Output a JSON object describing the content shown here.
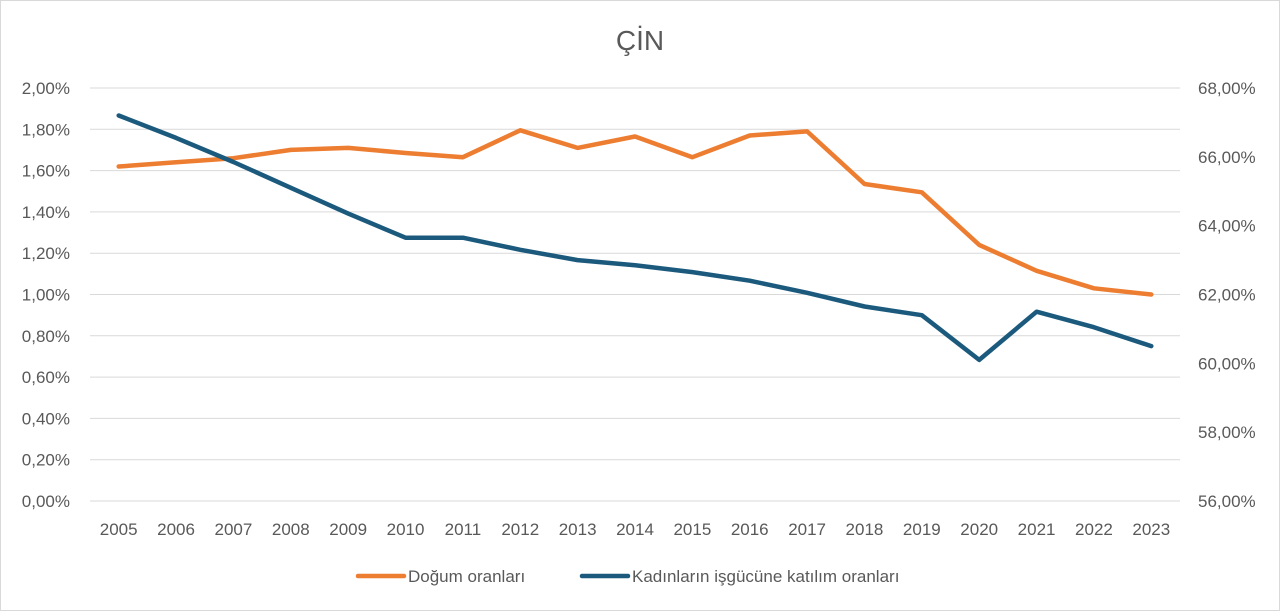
{
  "chart_data": {
    "type": "line",
    "title": "ÇİN",
    "categories": [
      "2005",
      "2006",
      "2007",
      "2008",
      "2009",
      "2010",
      "2011",
      "2012",
      "2013",
      "2014",
      "2015",
      "2016",
      "2017",
      "2018",
      "2019",
      "2020",
      "2021",
      "2022",
      "2023"
    ],
    "y_left": {
      "ylim": [
        0,
        2.0
      ],
      "tick_values": [
        0,
        0.2,
        0.4,
        0.6,
        0.8,
        1.0,
        1.2,
        1.4,
        1.6,
        1.8,
        2.0
      ],
      "tick_labels": [
        "0,00%",
        "0,20%",
        "0,40%",
        "0,60%",
        "0,80%",
        "1,00%",
        "1,20%",
        "1,40%",
        "1,60%",
        "1,80%",
        "2,00%"
      ]
    },
    "y_right": {
      "ylim": [
        56,
        68
      ],
      "tick_values": [
        56,
        58,
        60,
        62,
        64,
        66,
        68
      ],
      "tick_labels": [
        "56,00%",
        "58,00%",
        "60,00%",
        "62,00%",
        "64,00%",
        "66,00%",
        "68,00%"
      ]
    },
    "series": [
      {
        "name": "Doğum oranları",
        "axis": "left",
        "color": "#ED7D31",
        "values": [
          1.62,
          1.64,
          1.66,
          1.7,
          1.71,
          1.685,
          1.665,
          1.795,
          1.71,
          1.765,
          1.665,
          1.77,
          1.79,
          1.535,
          1.495,
          1.24,
          1.115,
          1.03,
          1.0
        ]
      },
      {
        "name": "Kadınların işgücüne katılım oranları",
        "axis": "right",
        "color": "#1C5A7D",
        "values": [
          67.2,
          66.55,
          65.85,
          65.1,
          64.35,
          63.65,
          63.65,
          63.3,
          63.0,
          62.85,
          62.65,
          62.4,
          62.05,
          61.65,
          61.4,
          60.1,
          61.5,
          61.05,
          60.5
        ]
      }
    ],
    "grid": true,
    "legend_position": "bottom"
  }
}
